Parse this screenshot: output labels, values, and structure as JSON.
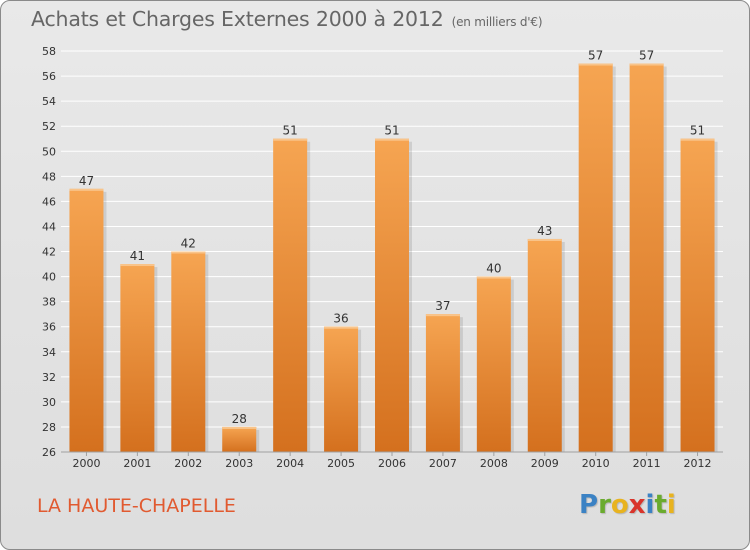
{
  "header": {
    "title": "Achats et Charges Externes 2000 à 2012",
    "subtitle": "(en milliers d'€)"
  },
  "footer": {
    "location": "LA HAUTE-CHAPELLE",
    "logo_letters": [
      {
        "ch": "P",
        "color": "#3b82c4"
      },
      {
        "ch": "r",
        "color": "#6aab2e"
      },
      {
        "ch": "o",
        "color": "#e8b31f"
      },
      {
        "ch": "x",
        "color": "#d9342b"
      },
      {
        "ch": "i",
        "color": "#3b82c4"
      },
      {
        "ch": "t",
        "color": "#6aab2e"
      },
      {
        "ch": "i",
        "color": "#e8b31f"
      }
    ]
  },
  "chart_data": {
    "type": "bar",
    "categories": [
      "2000",
      "2001",
      "2002",
      "2003",
      "2004",
      "2005",
      "2006",
      "2007",
      "2008",
      "2009",
      "2010",
      "2011",
      "2012"
    ],
    "values": [
      47,
      41,
      42,
      28,
      51,
      36,
      51,
      37,
      40,
      43,
      57,
      57,
      51
    ],
    "data_labels": [
      "47",
      "41",
      "42",
      "28",
      "51",
      "36",
      "51",
      "37",
      "40",
      "43",
      "57",
      "57",
      "51"
    ],
    "ylim": [
      26,
      58
    ],
    "yticks": [
      26,
      28,
      30,
      32,
      34,
      36,
      38,
      40,
      42,
      44,
      46,
      48,
      50,
      52,
      54,
      56,
      58
    ],
    "grid": true,
    "bar_color": "#f0923a"
  }
}
